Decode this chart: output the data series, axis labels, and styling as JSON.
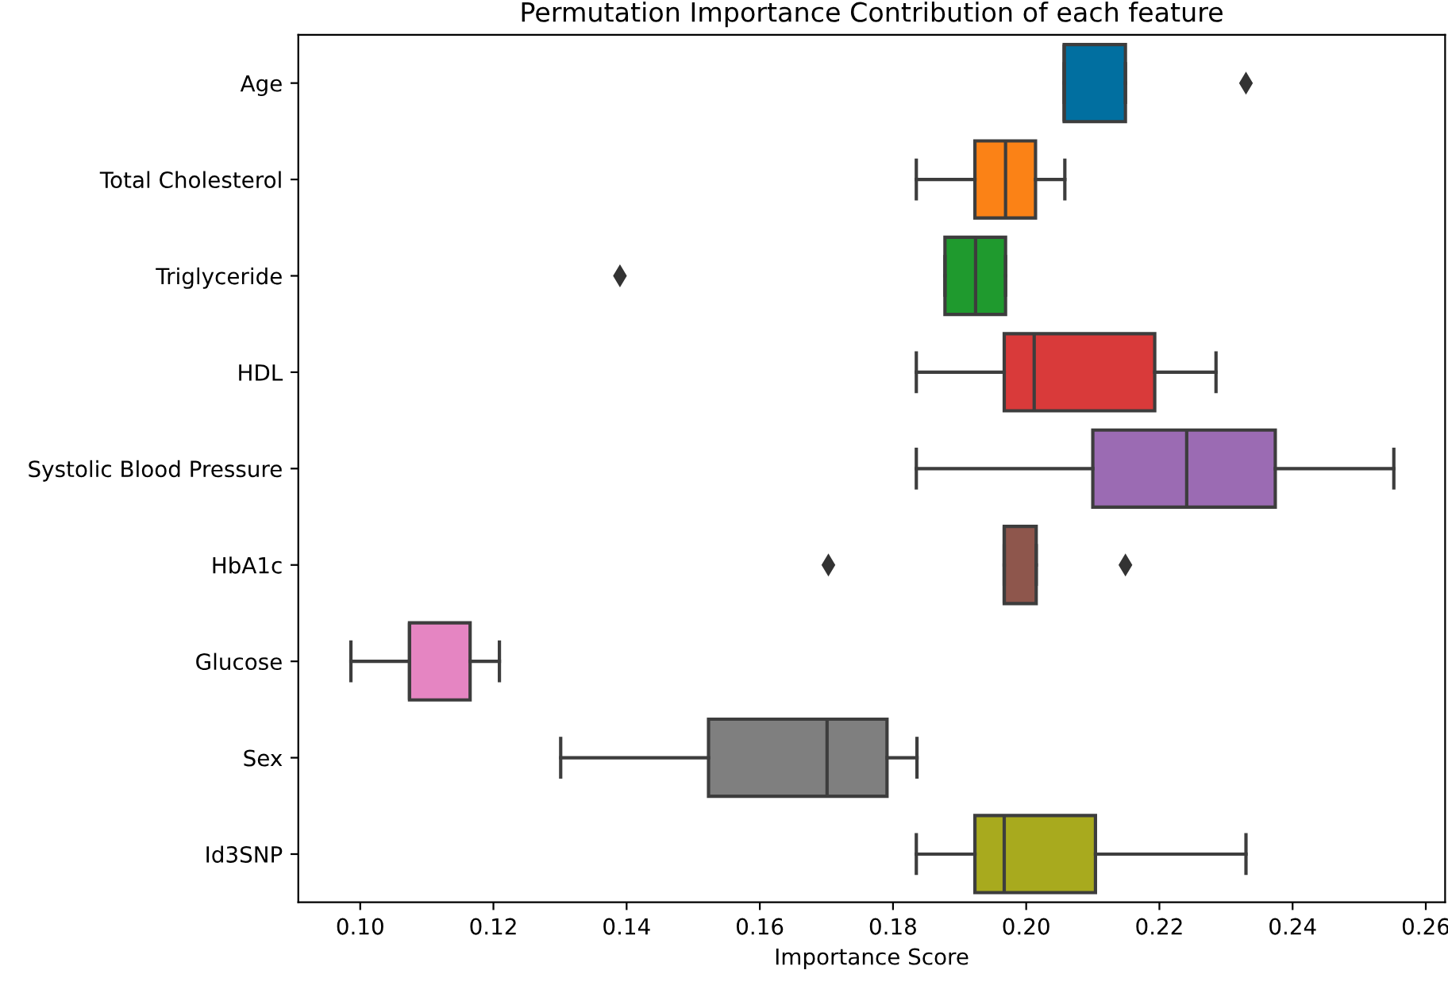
{
  "chart_data": {
    "type": "box",
    "orientation": "horizontal",
    "title": "Permutation Importance Contribution of each feature",
    "xlabel": "Importance Score",
    "categories": [
      "Age",
      "Total Cholesterol",
      "Triglyceride",
      "HDL",
      "Systolic Blood Pressure",
      "HbA1c",
      "Glucose",
      "Sex",
      "Id3SNP"
    ],
    "boxes": [
      {
        "low": 0.2057,
        "q1": 0.2057,
        "median": 0.2057,
        "q3": 0.2149,
        "high": 0.2149,
        "outliers": [
          0.233
        ]
      },
      {
        "low": 0.1835,
        "q1": 0.1923,
        "median": 0.1969,
        "q3": 0.2014,
        "high": 0.2058
      },
      {
        "low": 0.1878,
        "q1": 0.1878,
        "median": 0.1924,
        "q3": 0.1969,
        "high": 0.1969,
        "outliers": [
          0.139
        ]
      },
      {
        "low": 0.1835,
        "q1": 0.1967,
        "median": 0.2012,
        "q3": 0.2193,
        "high": 0.2285
      },
      {
        "low": 0.1835,
        "q1": 0.21,
        "median": 0.2241,
        "q3": 0.2374,
        "high": 0.2552
      },
      {
        "low": 0.1967,
        "q1": 0.1967,
        "median": 0.1967,
        "q3": 0.2015,
        "high": 0.2015,
        "outliers": [
          0.1703,
          0.2149
        ]
      },
      {
        "low": 0.0986,
        "q1": 0.1074,
        "median": 0.1074,
        "q3": 0.1165,
        "high": 0.1209
      },
      {
        "low": 0.1301,
        "q1": 0.1523,
        "median": 0.1701,
        "q3": 0.1791,
        "high": 0.1836
      },
      {
        "low": 0.1835,
        "q1": 0.1923,
        "median": 0.1967,
        "q3": 0.2104,
        "high": 0.233
      }
    ],
    "colors": [
      "#016fa0",
      "#fb8216",
      "#1f9a2e",
      "#d93a3a",
      "#9b6bb3",
      "#8e564c",
      "#e585c2",
      "#7f7f7f",
      "#a8aa1e"
    ],
    "xlim": [
      0.0907,
      0.2629
    ],
    "xticks": [
      {
        "value": 0.1,
        "label": "0.10"
      },
      {
        "value": 0.12,
        "label": "0.12"
      },
      {
        "value": 0.14,
        "label": "0.14"
      },
      {
        "value": 0.16,
        "label": "0.16"
      },
      {
        "value": 0.18,
        "label": "0.18"
      },
      {
        "value": 0.2,
        "label": "0.20"
      },
      {
        "value": 0.22,
        "label": "0.22"
      },
      {
        "value": 0.24,
        "label": "0.24"
      },
      {
        "value": 0.26,
        "label": "0.26"
      }
    ],
    "grid": false,
    "marker": "diamond"
  }
}
